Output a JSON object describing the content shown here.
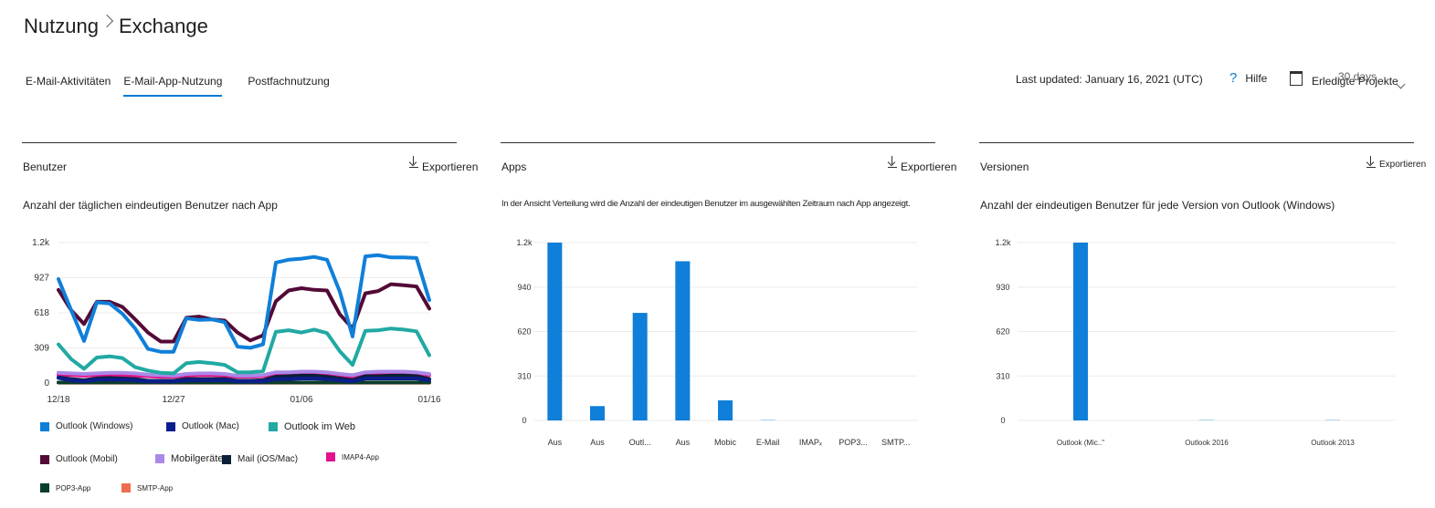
{
  "breadcrumb": {
    "root": "Nutzung",
    "current": "Exchange"
  },
  "tabs": [
    {
      "label": "E-Mail-Aktivitäten",
      "active": false
    },
    {
      "label": "E-Mail-App-Nutzung",
      "active": true
    },
    {
      "label": "Postfachnutzung",
      "active": false
    }
  ],
  "toolbar": {
    "last_updated": "Last updated: January 16, 2021 (UTC)",
    "help_label": "Hilfe",
    "done_projects_label": "Erledigte Projekte",
    "range_label": "30 days"
  },
  "cards": {
    "users": {
      "title": "Benutzer",
      "export": "Exportieren",
      "subtitle": "Anzahl der täglichen eindeutigen Benutzer nach App"
    },
    "apps": {
      "title": "Apps",
      "export": "Exportieren",
      "subtitle": "In der Ansicht Verteilung wird die Anzahl der eindeutigen Benutzer im ausgewählten Zeitraum nach App angezeigt."
    },
    "versions": {
      "title": "Versionen",
      "export": "Exportieren",
      "subtitle": "Anzahl der eindeutigen Benutzer für jede Version von Outlook (Windows)"
    }
  },
  "colors": {
    "accent": "#0078d4",
    "outlook_windows": "#0f7fd9",
    "outlook_mac": "#0a1e8c",
    "outlook_web": "#21a9a2",
    "outlook_mobile": "#530a37",
    "mobile_devices": "#a989e8",
    "mail_ios_mac": "#0b1f36",
    "imap4": "#e3128e",
    "pop3": "#0b3d2c",
    "smtp": "#ee6d4e"
  },
  "chart_data": [
    {
      "type": "line",
      "title": "Anzahl der täglichen eindeutigen Benutzer nach App",
      "x": [
        "12/18",
        "12/19",
        "12/20",
        "12/21",
        "12/22",
        "12/23",
        "12/24",
        "12/25",
        "12/26",
        "12/27",
        "12/28",
        "12/29",
        "12/30",
        "12/31",
        "01/01",
        "01/02",
        "01/03",
        "01/04",
        "01/05",
        "01/06",
        "01/07",
        "01/08",
        "01/09",
        "01/10",
        "01/11",
        "01/12",
        "01/13",
        "01/14",
        "01/15",
        "01/16"
      ],
      "x_ticks": [
        "12/18",
        "12/27",
        "01/06",
        "01/16"
      ],
      "y_ticks": [
        "0",
        "309",
        "618",
        "927",
        "1.2k"
      ],
      "ylim": [
        0,
        1236
      ],
      "legend": [
        "Outlook (Windows)",
        "Outlook (Mac)",
        "Outlook im Web",
        "Outlook (Mobil)",
        "Mobilgeräte",
        "Mail (iOS/Mac)",
        "IMAP4-App",
        "POP3-App",
        "SMTP-App"
      ],
      "series": [
        {
          "name": "Outlook (Windows)",
          "color": "#0f7fd9",
          "values": [
            915,
            640,
            370,
            710,
            700,
            610,
            480,
            300,
            275,
            275,
            570,
            555,
            560,
            535,
            320,
            310,
            340,
            1060,
            1085,
            1095,
            1110,
            1085,
            805,
            410,
            1115,
            1125,
            1105,
            1105,
            1100,
            730
          ]
        },
        {
          "name": "Outlook (Mac)",
          "color": "#0a1e8c",
          "values": [
            45,
            25,
            15,
            30,
            30,
            30,
            25,
            15,
            15,
            15,
            25,
            25,
            25,
            25,
            15,
            15,
            15,
            35,
            35,
            40,
            40,
            35,
            25,
            15,
            40,
            40,
            40,
            40,
            40,
            25
          ]
        },
        {
          "name": "Outlook im Web",
          "color": "#21a9a2",
          "values": [
            340,
            210,
            125,
            225,
            235,
            220,
            140,
            110,
            90,
            85,
            175,
            185,
            175,
            160,
            95,
            95,
            105,
            450,
            465,
            445,
            470,
            440,
            280,
            160,
            460,
            465,
            480,
            470,
            455,
            245
          ]
        },
        {
          "name": "Outlook (Mobil)",
          "color": "#530a37",
          "values": [
            820,
            640,
            520,
            715,
            715,
            670,
            560,
            445,
            365,
            365,
            575,
            585,
            560,
            550,
            445,
            375,
            420,
            720,
            815,
            835,
            820,
            815,
            605,
            480,
            790,
            810,
            870,
            860,
            850,
            655
          ]
        },
        {
          "name": "Mobilgeräte",
          "color": "#a989e8",
          "values": [
            90,
            85,
            80,
            85,
            90,
            90,
            85,
            75,
            70,
            65,
            80,
            85,
            85,
            80,
            65,
            65,
            70,
            95,
            95,
            100,
            100,
            95,
            80,
            70,
            95,
            100,
            100,
            100,
            95,
            80
          ]
        },
        {
          "name": "Mail (iOS/Mac)",
          "color": "#0b1f36",
          "values": [
            50,
            35,
            25,
            40,
            45,
            40,
            35,
            20,
            20,
            20,
            35,
            35,
            35,
            35,
            20,
            20,
            25,
            55,
            60,
            65,
            65,
            55,
            40,
            25,
            60,
            60,
            65,
            65,
            60,
            35
          ]
        },
        {
          "name": "IMAP4-App",
          "color": "#e3128e",
          "values": [
            75,
            70,
            65,
            70,
            75,
            70,
            65,
            60,
            55,
            55,
            65,
            70,
            70,
            65,
            55,
            55,
            60,
            75,
            80,
            85,
            80,
            80,
            65,
            55,
            80,
            80,
            85,
            80,
            80,
            70
          ]
        },
        {
          "name": "POP3-App",
          "color": "#0b3d2c",
          "values": [
            5,
            5,
            5,
            5,
            5,
            5,
            5,
            5,
            5,
            5,
            5,
            5,
            5,
            5,
            5,
            5,
            5,
            5,
            5,
            5,
            5,
            5,
            5,
            5,
            5,
            5,
            5,
            5,
            5,
            5
          ]
        },
        {
          "name": "SMTP-App",
          "color": "#ee6d4e",
          "values": [
            3,
            3,
            3,
            3,
            3,
            3,
            3,
            3,
            3,
            3,
            3,
            3,
            3,
            3,
            3,
            3,
            3,
            3,
            3,
            3,
            3,
            3,
            3,
            3,
            3,
            3,
            3,
            3,
            3,
            3
          ]
        }
      ]
    },
    {
      "type": "bar",
      "title": "Apps",
      "categories": [
        "Aus",
        "Aus",
        "Outl...",
        "Aus",
        "Mobic",
        "E-Mail",
        "IMAPₓ",
        "POP3...",
        "SMTP..."
      ],
      "values": [
        1240,
        100,
        750,
        1110,
        140,
        2,
        0,
        0,
        0
      ],
      "y_ticks": [
        "0",
        "310",
        "620",
        "940",
        "1.2k"
      ],
      "ylim": [
        0,
        1240
      ],
      "color": "#0f7fd9"
    },
    {
      "type": "bar",
      "title": "Versionen",
      "categories": [
        "Outlook (Mic..\"",
        "Outlook 2016",
        "Outlook 2013"
      ],
      "values": [
        1240,
        2,
        2
      ],
      "y_ticks": [
        "0",
        "310",
        "620",
        "930",
        "1.2k"
      ],
      "ylim": [
        0,
        1240
      ],
      "color": "#0f7fd9"
    }
  ]
}
